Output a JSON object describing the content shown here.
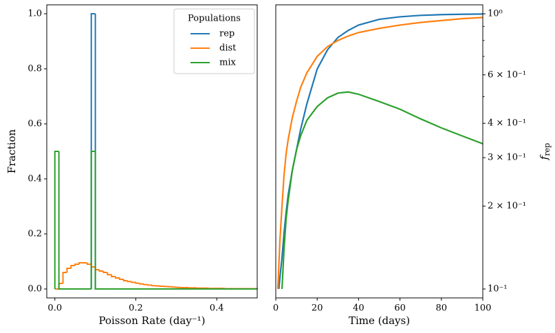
{
  "chart_data": [
    {
      "type": "histogram",
      "xlabel": "Poisson Rate (day⁻¹)",
      "ylabel": "Fraction",
      "xlim": [
        -0.02,
        0.5
      ],
      "ylim": [
        -0.0325,
        1.0325
      ],
      "xticks": [
        {
          "value": 0,
          "label": "0.0"
        },
        {
          "value": 0.2,
          "label": "0.2"
        },
        {
          "value": 0.4,
          "label": "0.4"
        }
      ],
      "yticks": [
        {
          "value": 0,
          "label": "0.0"
        },
        {
          "value": 0.2,
          "label": "0.2"
        },
        {
          "value": 0.4,
          "label": "0.4"
        },
        {
          "value": 0.6,
          "label": "0.6"
        },
        {
          "value": 0.8,
          "label": "0.8"
        },
        {
          "value": 1,
          "label": "1.0"
        }
      ],
      "legend_title": "Populations",
      "legend": "upper right",
      "bins": [
        0,
        0.01,
        0.02,
        0.03,
        0.04,
        0.05,
        0.06,
        0.07,
        0.08,
        0.09,
        0.1,
        0.11,
        0.12,
        0.13,
        0.14,
        0.15,
        0.16,
        0.17,
        0.18,
        0.19,
        0.2,
        0.21,
        0.22,
        0.23,
        0.24,
        0.25,
        0.26,
        0.27,
        0.28,
        0.29,
        0.3,
        0.31,
        0.32,
        0.33,
        0.34,
        0.35,
        0.36,
        0.37,
        0.38,
        0.39,
        0.4,
        0.41,
        0.42,
        0.43,
        0.44,
        0.45,
        0.46,
        0.47,
        0.48,
        0.49,
        0.5
      ],
      "series": [
        {
          "name": "rep",
          "color": "#1f77b4",
          "values": [
            0,
            0,
            0,
            0,
            0,
            0,
            0,
            0,
            0,
            1,
            0,
            0,
            0,
            0,
            0,
            0,
            0,
            0,
            0,
            0,
            0,
            0,
            0,
            0,
            0,
            0,
            0,
            0,
            0,
            0,
            0,
            0,
            0,
            0,
            0,
            0,
            0,
            0,
            0,
            0,
            0,
            0,
            0,
            0,
            0,
            0,
            0,
            0,
            0,
            0
          ]
        },
        {
          "name": "dist",
          "color": "#ff7f0e",
          "values": [
            0,
            0.02,
            0.06,
            0.075,
            0.085,
            0.09,
            0.095,
            0.095,
            0.09,
            0.08,
            0.07,
            0.065,
            0.06,
            0.052,
            0.045,
            0.04,
            0.035,
            0.03,
            0.027,
            0.024,
            0.021,
            0.018,
            0.016,
            0.014,
            0.012,
            0.011,
            0.01,
            0.009,
            0.008,
            0.007,
            0.006,
            0.005,
            0.005,
            0.004,
            0.004,
            0.003,
            0.003,
            0.003,
            0.002,
            0.002,
            0.002,
            0.002,
            0.001,
            0.001,
            0.001,
            0.001,
            0.001,
            0.001,
            0.001,
            0.001
          ]
        },
        {
          "name": "mix",
          "color": "#2ca02c",
          "values": [
            0.5,
            0,
            0,
            0,
            0,
            0,
            0,
            0,
            0,
            0.5,
            0,
            0,
            0,
            0,
            0,
            0,
            0,
            0,
            0,
            0,
            0,
            0,
            0,
            0,
            0,
            0,
            0,
            0,
            0,
            0,
            0,
            0,
            0,
            0,
            0,
            0,
            0,
            0,
            0,
            0,
            0,
            0,
            0,
            0,
            0,
            0,
            0,
            0,
            0,
            0
          ]
        }
      ]
    },
    {
      "type": "line",
      "xlabel": "Time (days)",
      "ylabel": "f",
      "ylabel_sub": "rep",
      "xlim": [
        0,
        100
      ],
      "ylim": [
        0.0928,
        1.078
      ],
      "log_y": true,
      "y_axis_side": "right",
      "xticks": [
        0,
        20,
        40,
        60,
        80,
        100
      ],
      "yticks": [
        {
          "value": 1,
          "label": "10⁰"
        },
        {
          "value": 0.6,
          "label": "6 × 10⁻¹"
        },
        {
          "value": 0.4,
          "label": "4 × 10⁻¹"
        },
        {
          "value": 0.3,
          "label": "3 × 10⁻¹"
        },
        {
          "value": 0.2,
          "label": "2 × 10⁻¹"
        },
        {
          "value": 0.1,
          "label": "10⁻¹"
        }
      ],
      "yminor_ticks": [
        0.5,
        0.7,
        0.8,
        0.9
      ],
      "series": [
        {
          "name": "rep",
          "color": "#1f77b4",
          "x": [
            1.5,
            2,
            3,
            4,
            5,
            6,
            8,
            10,
            12,
            15,
            20,
            25,
            30,
            35,
            40,
            50,
            60,
            70,
            80,
            90,
            100
          ],
          "values": [
            0.1,
            0.11,
            0.13,
            0.16,
            0.19,
            0.22,
            0.27,
            0.32,
            0.38,
            0.47,
            0.63,
            0.74,
            0.82,
            0.87,
            0.91,
            0.955,
            0.975,
            0.987,
            0.993,
            0.996,
            0.998
          ]
        },
        {
          "name": "dist",
          "color": "#ff7f0e",
          "x": [
            1,
            2,
            3,
            4,
            5,
            6,
            8,
            10,
            12,
            15,
            20,
            25,
            30,
            35,
            40,
            50,
            60,
            70,
            80,
            90,
            100
          ],
          "values": [
            0.1,
            0.15,
            0.2,
            0.26,
            0.31,
            0.35,
            0.42,
            0.48,
            0.54,
            0.61,
            0.7,
            0.76,
            0.8,
            0.83,
            0.855,
            0.885,
            0.91,
            0.93,
            0.945,
            0.96,
            0.97
          ]
        },
        {
          "name": "mix",
          "color": "#2ca02c",
          "x": [
            3,
            4,
            5,
            6,
            8,
            10,
            12,
            15,
            20,
            25,
            30,
            35,
            40,
            50,
            60,
            70,
            80,
            90,
            100
          ],
          "values": [
            0.1,
            0.14,
            0.18,
            0.21,
            0.27,
            0.32,
            0.36,
            0.41,
            0.46,
            0.495,
            0.515,
            0.52,
            0.51,
            0.48,
            0.45,
            0.415,
            0.385,
            0.36,
            0.337
          ]
        }
      ]
    }
  ]
}
